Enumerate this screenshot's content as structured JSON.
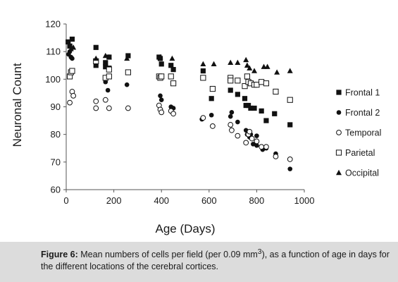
{
  "caption": {
    "label": "Figure 6:",
    "text_before_sup": " Mean numbers of cells per field (per 0.09 mm",
    "sup": "3",
    "text_after_sup": "), as a function of age in days for the different locations of the cerebral cortices."
  },
  "chart_data": {
    "type": "scatter",
    "title": "",
    "xlabel": "Age (Days)",
    "ylabel": "Neuronal Count",
    "xlim": [
      0,
      1000
    ],
    "ylim": [
      60,
      120
    ],
    "xticks": [
      0,
      200,
      400,
      600,
      800,
      1000
    ],
    "yticks": [
      60,
      70,
      80,
      90,
      100,
      110,
      120
    ],
    "grid": false,
    "legend_position": "right",
    "series": [
      {
        "name": "Frontal 1",
        "marker": "filled-square",
        "points": [
          [
            8,
            113.5
          ],
          [
            15,
            112
          ],
          [
            25,
            114.5
          ],
          [
            125,
            111.5
          ],
          [
            125,
            105
          ],
          [
            165,
            104.5
          ],
          [
            165,
            106
          ],
          [
            180,
            108
          ],
          [
            180,
            104
          ],
          [
            260,
            108.5
          ],
          [
            390,
            108
          ],
          [
            395,
            107.5
          ],
          [
            400,
            105.5
          ],
          [
            440,
            105
          ],
          [
            450,
            103.5
          ],
          [
            575,
            103
          ],
          [
            610,
            93
          ],
          [
            690,
            100
          ],
          [
            690,
            96
          ],
          [
            720,
            94.5
          ],
          [
            750,
            93
          ],
          [
            755,
            90.5
          ],
          [
            765,
            90.5
          ],
          [
            775,
            89.5
          ],
          [
            790,
            89.5
          ],
          [
            820,
            88.5
          ],
          [
            840,
            85
          ],
          [
            875,
            87.5
          ],
          [
            940,
            83.5
          ]
        ]
      },
      {
        "name": "Frontal 2",
        "marker": "filled-circle",
        "points": [
          [
            10,
            109
          ],
          [
            15,
            110
          ],
          [
            20,
            108
          ],
          [
            25,
            107.5
          ],
          [
            165,
            99
          ],
          [
            175,
            96
          ],
          [
            255,
            98
          ],
          [
            395,
            94
          ],
          [
            400,
            92.5
          ],
          [
            440,
            90
          ],
          [
            450,
            89.5
          ],
          [
            570,
            85.5
          ],
          [
            610,
            87
          ],
          [
            690,
            86.5
          ],
          [
            695,
            88
          ],
          [
            720,
            84.5
          ],
          [
            755,
            81.5
          ],
          [
            760,
            80
          ],
          [
            770,
            79
          ],
          [
            775,
            80
          ],
          [
            785,
            76.5
          ],
          [
            800,
            76
          ],
          [
            800,
            79.5
          ],
          [
            825,
            74.5
          ],
          [
            840,
            75
          ],
          [
            880,
            73
          ],
          [
            940,
            67.5
          ]
        ]
      },
      {
        "name": "Temporal",
        "marker": "open-circle",
        "points": [
          [
            15,
            91.5
          ],
          [
            25,
            95.5
          ],
          [
            30,
            94
          ],
          [
            125,
            92
          ],
          [
            125,
            89.5
          ],
          [
            165,
            92.5
          ],
          [
            180,
            89.5
          ],
          [
            260,
            89.5
          ],
          [
            390,
            90.5
          ],
          [
            395,
            89
          ],
          [
            400,
            88
          ],
          [
            440,
            88.5
          ],
          [
            450,
            87.5
          ],
          [
            575,
            86
          ],
          [
            615,
            83
          ],
          [
            690,
            83.5
          ],
          [
            695,
            81.5
          ],
          [
            720,
            79.5
          ],
          [
            755,
            77
          ],
          [
            765,
            80
          ],
          [
            770,
            81
          ],
          [
            780,
            78.5
          ],
          [
            800,
            77.5
          ],
          [
            820,
            75.5
          ],
          [
            840,
            75.5
          ],
          [
            880,
            72
          ],
          [
            940,
            71
          ]
        ]
      },
      {
        "name": "Parietal",
        "marker": "open-square",
        "points": [
          [
            15,
            101
          ],
          [
            20,
            102.5
          ],
          [
            25,
            103
          ],
          [
            125,
            106.5
          ],
          [
            165,
            100.5
          ],
          [
            180,
            101
          ],
          [
            180,
            103.5
          ],
          [
            260,
            102.5
          ],
          [
            390,
            101
          ],
          [
            395,
            100.5
          ],
          [
            400,
            101
          ],
          [
            440,
            101
          ],
          [
            450,
            98.5
          ],
          [
            575,
            100.5
          ],
          [
            615,
            96.5
          ],
          [
            690,
            100.5
          ],
          [
            690,
            99.5
          ],
          [
            720,
            99.5
          ],
          [
            750,
            97.5
          ],
          [
            760,
            101
          ],
          [
            765,
            99
          ],
          [
            775,
            98.5
          ],
          [
            790,
            98
          ],
          [
            800,
            98
          ],
          [
            820,
            99
          ],
          [
            840,
            98.5
          ],
          [
            880,
            95.5
          ],
          [
            940,
            92.5
          ]
        ]
      },
      {
        "name": "Occipital",
        "marker": "filled-triangle",
        "points": [
          [
            20,
            111
          ],
          [
            30,
            111.5
          ],
          [
            125,
            107.5
          ],
          [
            165,
            108.5
          ],
          [
            180,
            108
          ],
          [
            255,
            107.5
          ],
          [
            395,
            108
          ],
          [
            445,
            107.5
          ],
          [
            575,
            105.5
          ],
          [
            620,
            105.5
          ],
          [
            690,
            106
          ],
          [
            720,
            106
          ],
          [
            755,
            107
          ],
          [
            760,
            105
          ],
          [
            770,
            104
          ],
          [
            790,
            103
          ],
          [
            830,
            104.5
          ],
          [
            845,
            104.5
          ],
          [
            885,
            102.5
          ],
          [
            940,
            103
          ]
        ]
      }
    ]
  }
}
